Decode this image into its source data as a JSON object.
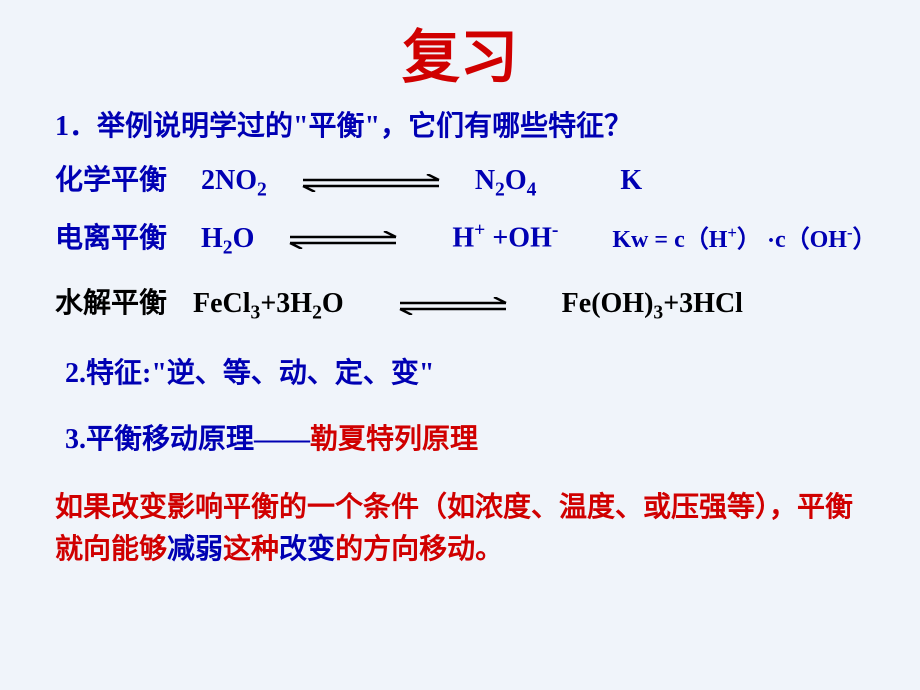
{
  "colors": {
    "background": "#f0f4fa",
    "title": "#d00000",
    "blue": "#0000b3",
    "black": "#000000",
    "red": "#d00000"
  },
  "title": {
    "text": "复习",
    "fontsize": 58
  },
  "line1": {
    "text": "1．举例说明学过的\"平衡\"，它们有哪些特征？",
    "fontsize": 28,
    "color": "#0000b3"
  },
  "eq_chem": {
    "label": "化学平衡",
    "lhs_a": "2NO",
    "lhs_a_sub": "2",
    "rhs_a": "N",
    "rhs_a_sub": "2",
    "rhs_b": "O",
    "rhs_b_sub": "4",
    "k": "K",
    "fontsize": 28,
    "arrow_width": 140,
    "arrow_height": 18,
    "arrow_color": "#000000"
  },
  "eq_ion": {
    "label": "电离平衡",
    "lhs": "H",
    "lhs_sub": "2",
    "lhs_b": "O",
    "rhs_a": "H",
    "rhs_a_sup": "+",
    "plus": " +",
    "rhs_b": "OH",
    "rhs_b_sup": "-",
    "kw_a": "Kw = c（H",
    "kw_a_sup": "+",
    "kw_b": "） ",
    "kw_dot": "·",
    "kw_c": "c（OH",
    "kw_c_sup": "-",
    "kw_d": "）",
    "fontsize": 28,
    "kw_fontsize": 24,
    "arrow_width": 110,
    "arrow_height": 18,
    "arrow_color": "#000000"
  },
  "eq_hydro": {
    "label": "水解平衡",
    "lhs_a": "FeCl",
    "lhs_a_sub": "3",
    "plus1": "+3H",
    "lhs_b_sub": "2",
    "lhs_c": "O",
    "rhs_a": "Fe(OH)",
    "rhs_a_sub": "3",
    "plus2": "+3HCl",
    "fontsize": 28,
    "arrow_width": 110,
    "arrow_height": 18,
    "arrow_color": "#000000"
  },
  "line_feat": {
    "text": "2.特征:\"逆、等、动、定、变\"",
    "fontsize": 28,
    "color": "#0000b3"
  },
  "line_prin": {
    "a": "3.平衡移动原理——",
    "b": "勒夏特列原理",
    "fontsize": 28
  },
  "para": {
    "a": "如果改变影响平衡的一个条件（如浓度、温度、或压强等），平衡就向能够",
    "b": "减弱",
    "c": "这种",
    "d": "改变",
    "e": "的方向移动。",
    "fontsize": 28
  }
}
